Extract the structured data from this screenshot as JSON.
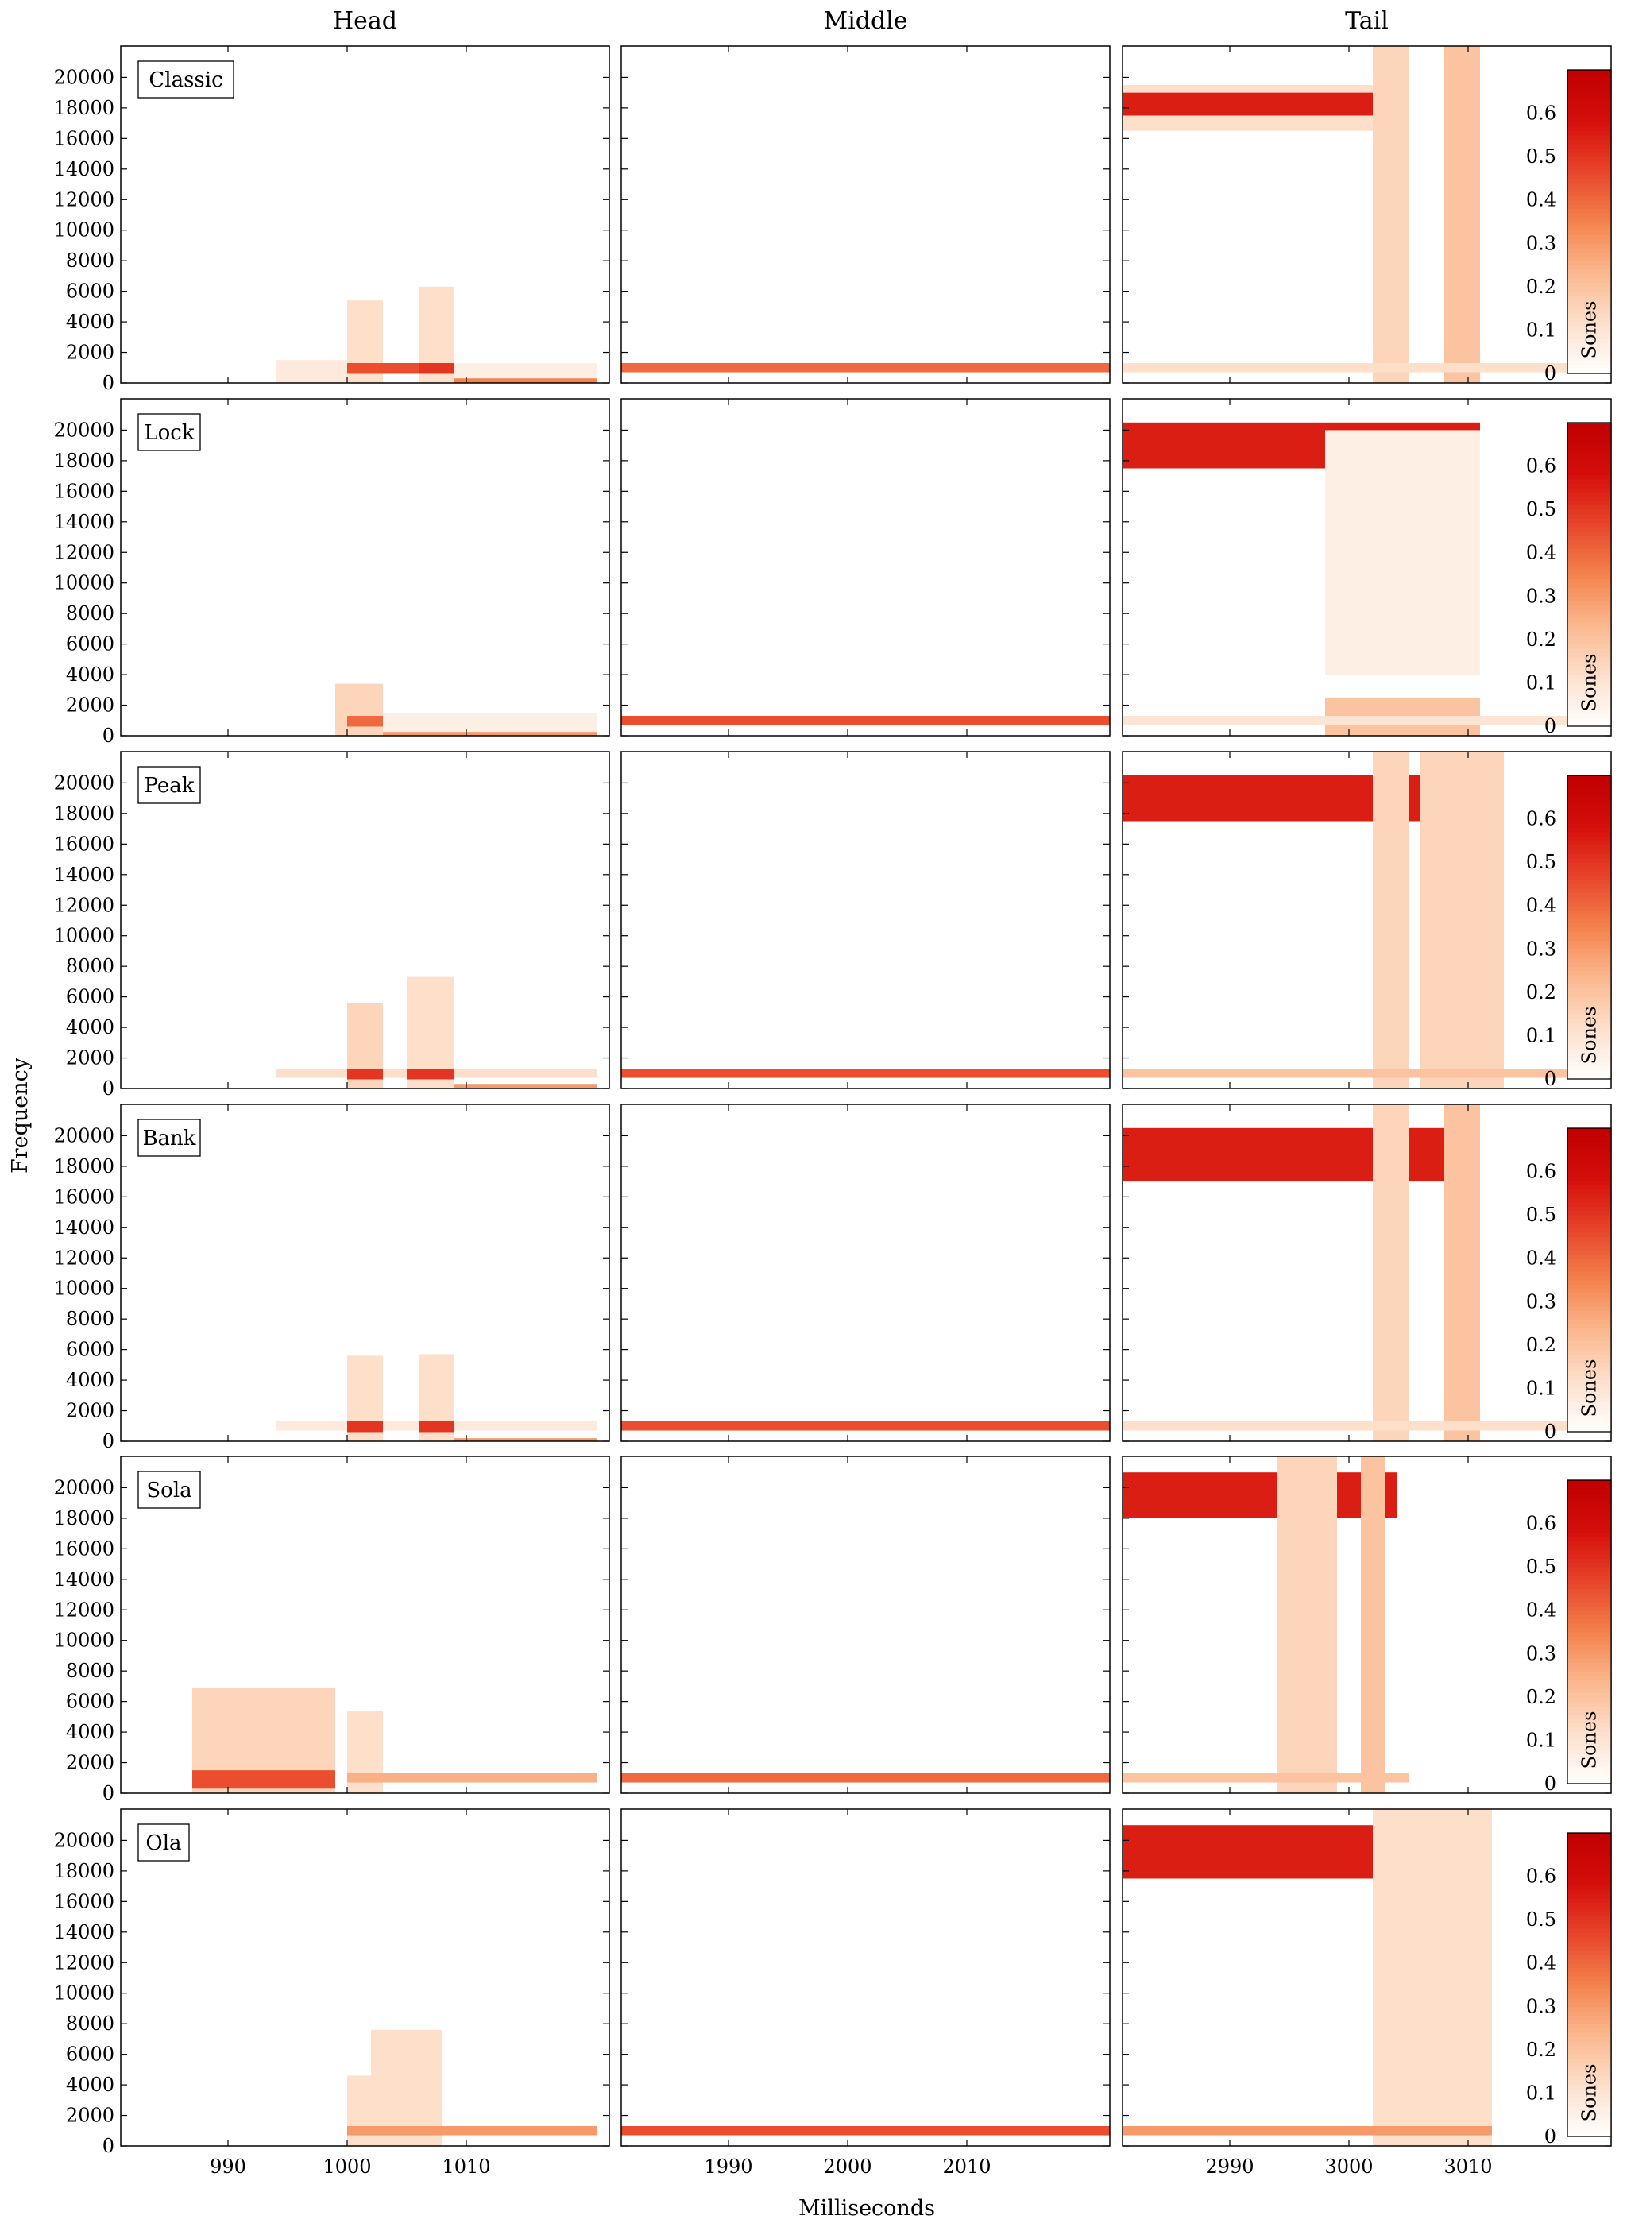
{
  "chart_data": {
    "type": "heatmap",
    "columns": [
      {
        "title": "Head",
        "xticks": [
          990,
          1000,
          1010
        ],
        "xlim": [
          981,
          1022
        ]
      },
      {
        "title": "Middle",
        "xticks": [
          1990,
          2000,
          2010
        ],
        "xlim": [
          1981,
          2022
        ]
      },
      {
        "title": "Tail",
        "xticks": [
          2990,
          3000,
          3010
        ],
        "xlim": [
          2981,
          3022
        ]
      }
    ],
    "rows": [
      "Classic",
      "Lock",
      "Peak",
      "Bank",
      "Sola",
      "Ola"
    ],
    "yticks": [
      0,
      2000,
      4000,
      6000,
      8000,
      10000,
      12000,
      14000,
      16000,
      18000,
      20000
    ],
    "ylim": [
      0,
      22050
    ],
    "xlabel": "Milliseconds",
    "ylabel": "Frequency",
    "colorbar": {
      "label": "Sones",
      "ticks": [
        0,
        0.1,
        0.2,
        0.3,
        0.4,
        0.5,
        0.6
      ],
      "range": [
        0,
        0.7
      ]
    },
    "colormap": [
      "#ffffff",
      "#fde0cc",
      "#fbb88e",
      "#f4834e",
      "#e8452a",
      "#d50e0b",
      "#c00000"
    ],
    "grid": false,
    "cells": {
      "Classic": {
        "Head": [
          {
            "x0": 994,
            "x1": 1000,
            "y0": 0,
            "y1": 1500,
            "v": 0.08
          },
          {
            "x0": 1000,
            "x1": 1003,
            "y0": 0,
            "y1": 5400,
            "v": 0.12
          },
          {
            "x0": 1000,
            "x1": 1006,
            "y0": 600,
            "y1": 1300,
            "v": 0.45
          },
          {
            "x0": 1006,
            "x1": 1009,
            "y0": 0,
            "y1": 6300,
            "v": 0.12
          },
          {
            "x0": 1006,
            "x1": 1009,
            "y0": 600,
            "y1": 1300,
            "v": 0.5
          },
          {
            "x0": 1009,
            "x1": 1021,
            "y0": 0,
            "y1": 1300,
            "v": 0.06
          },
          {
            "x0": 1009,
            "x1": 1021,
            "y0": 0,
            "y1": 300,
            "v": 0.35
          }
        ],
        "Middle": [
          {
            "x0": 1981,
            "x1": 2022,
            "y0": 700,
            "y1": 1300,
            "v": 0.4
          }
        ],
        "Tail": [
          {
            "x0": 2981,
            "x1": 3004,
            "y0": 16500,
            "y1": 19500,
            "v": 0.12
          },
          {
            "x0": 2981,
            "x1": 3004,
            "y0": 17500,
            "y1": 19000,
            "v": 0.55
          },
          {
            "x0": 3002,
            "x1": 3005,
            "y0": 0,
            "y1": 22050,
            "v": 0.15
          },
          {
            "x0": 3008,
            "x1": 3011,
            "y0": 0,
            "y1": 22050,
            "v": 0.2
          },
          {
            "x0": 2981,
            "x1": 3022,
            "y0": 700,
            "y1": 1300,
            "v": 0.12
          }
        ]
      },
      "Lock": {
        "Head": [
          {
            "x0": 999,
            "x1": 1003,
            "y0": 0,
            "y1": 3400,
            "v": 0.15
          },
          {
            "x0": 1000,
            "x1": 1003,
            "y0": 600,
            "y1": 1300,
            "v": 0.4
          },
          {
            "x0": 1003,
            "x1": 1021,
            "y0": 0,
            "y1": 1500,
            "v": 0.06
          },
          {
            "x0": 1003,
            "x1": 1021,
            "y0": 0,
            "y1": 250,
            "v": 0.3
          }
        ],
        "Middle": [
          {
            "x0": 1981,
            "x1": 2022,
            "y0": 700,
            "y1": 1300,
            "v": 0.45
          }
        ],
        "Tail": [
          {
            "x0": 2981,
            "x1": 3011,
            "y0": 17500,
            "y1": 20500,
            "v": 0.55
          },
          {
            "x0": 2998,
            "x1": 3011,
            "y0": 4000,
            "y1": 20000,
            "v": 0.06
          },
          {
            "x0": 2998,
            "x1": 3011,
            "y0": 0,
            "y1": 2500,
            "v": 0.2
          },
          {
            "x0": 2981,
            "x1": 3022,
            "y0": 700,
            "y1": 1300,
            "v": 0.1
          }
        ]
      },
      "Peak": {
        "Head": [
          {
            "x0": 994,
            "x1": 1021,
            "y0": 700,
            "y1": 1300,
            "v": 0.12
          },
          {
            "x0": 1000,
            "x1": 1003,
            "y0": 0,
            "y1": 5600,
            "v": 0.15
          },
          {
            "x0": 1000,
            "x1": 1003,
            "y0": 600,
            "y1": 1300,
            "v": 0.5
          },
          {
            "x0": 1005,
            "x1": 1009,
            "y0": 0,
            "y1": 7300,
            "v": 0.12
          },
          {
            "x0": 1005,
            "x1": 1009,
            "y0": 600,
            "y1": 1300,
            "v": 0.5
          },
          {
            "x0": 1009,
            "x1": 1021,
            "y0": 0,
            "y1": 300,
            "v": 0.3
          }
        ],
        "Middle": [
          {
            "x0": 1981,
            "x1": 2022,
            "y0": 700,
            "y1": 1300,
            "v": 0.45
          }
        ],
        "Tail": [
          {
            "x0": 2981,
            "x1": 3010,
            "y0": 17500,
            "y1": 20500,
            "v": 0.55
          },
          {
            "x0": 3002,
            "x1": 3005,
            "y0": 0,
            "y1": 22050,
            "v": 0.15
          },
          {
            "x0": 3006,
            "x1": 3013,
            "y0": 0,
            "y1": 22050,
            "v": 0.15
          },
          {
            "x0": 2981,
            "x1": 3022,
            "y0": 700,
            "y1": 1300,
            "v": 0.2
          }
        ]
      },
      "Bank": {
        "Head": [
          {
            "x0": 994,
            "x1": 1021,
            "y0": 700,
            "y1": 1300,
            "v": 0.08
          },
          {
            "x0": 1000,
            "x1": 1003,
            "y0": 0,
            "y1": 5600,
            "v": 0.12
          },
          {
            "x0": 1000,
            "x1": 1003,
            "y0": 600,
            "y1": 1300,
            "v": 0.5
          },
          {
            "x0": 1006,
            "x1": 1009,
            "y0": 0,
            "y1": 5700,
            "v": 0.12
          },
          {
            "x0": 1006,
            "x1": 1009,
            "y0": 600,
            "y1": 1300,
            "v": 0.5
          },
          {
            "x0": 1009,
            "x1": 1021,
            "y0": 0,
            "y1": 200,
            "v": 0.3
          }
        ],
        "Middle": [
          {
            "x0": 1981,
            "x1": 2022,
            "y0": 700,
            "y1": 1300,
            "v": 0.45
          }
        ],
        "Tail": [
          {
            "x0": 2981,
            "x1": 3011,
            "y0": 17000,
            "y1": 20500,
            "v": 0.55
          },
          {
            "x0": 3002,
            "x1": 3005,
            "y0": 0,
            "y1": 22050,
            "v": 0.15
          },
          {
            "x0": 3008,
            "x1": 3011,
            "y0": 0,
            "y1": 22050,
            "v": 0.2
          },
          {
            "x0": 2981,
            "x1": 3022,
            "y0": 700,
            "y1": 1300,
            "v": 0.12
          }
        ]
      },
      "Sola": {
        "Head": [
          {
            "x0": 987,
            "x1": 999,
            "y0": 0,
            "y1": 6900,
            "v": 0.15
          },
          {
            "x0": 987,
            "x1": 999,
            "y0": 300,
            "y1": 1500,
            "v": 0.45
          },
          {
            "x0": 1000,
            "x1": 1003,
            "y0": 0,
            "y1": 5400,
            "v": 0.12
          },
          {
            "x0": 1000,
            "x1": 1021,
            "y0": 700,
            "y1": 1300,
            "v": 0.25
          }
        ],
        "Middle": [
          {
            "x0": 1981,
            "x1": 2022,
            "y0": 700,
            "y1": 1300,
            "v": 0.4
          }
        ],
        "Tail": [
          {
            "x0": 2981,
            "x1": 3004,
            "y0": 18000,
            "y1": 21000,
            "v": 0.55
          },
          {
            "x0": 2994,
            "x1": 2999,
            "y0": 0,
            "y1": 22050,
            "v": 0.15
          },
          {
            "x0": 3001,
            "x1": 3003,
            "y0": 0,
            "y1": 22050,
            "v": 0.2
          },
          {
            "x0": 2981,
            "x1": 3005,
            "y0": 700,
            "y1": 1300,
            "v": 0.2
          }
        ]
      },
      "Ola": {
        "Head": [
          {
            "x0": 1000,
            "x1": 1002,
            "y0": 0,
            "y1": 4600,
            "v": 0.12
          },
          {
            "x0": 1002,
            "x1": 1008,
            "y0": 0,
            "y1": 7600,
            "v": 0.12
          },
          {
            "x0": 1000,
            "x1": 1021,
            "y0": 700,
            "y1": 1300,
            "v": 0.3
          }
        ],
        "Middle": [
          {
            "x0": 1981,
            "x1": 2022,
            "y0": 700,
            "y1": 1300,
            "v": 0.45
          }
        ],
        "Tail": [
          {
            "x0": 2981,
            "x1": 3012,
            "y0": 17500,
            "y1": 21000,
            "v": 0.55
          },
          {
            "x0": 3002,
            "x1": 3012,
            "y0": 0,
            "y1": 22050,
            "v": 0.12
          },
          {
            "x0": 2981,
            "x1": 3012,
            "y0": 700,
            "y1": 1300,
            "v": 0.3
          }
        ]
      }
    }
  }
}
